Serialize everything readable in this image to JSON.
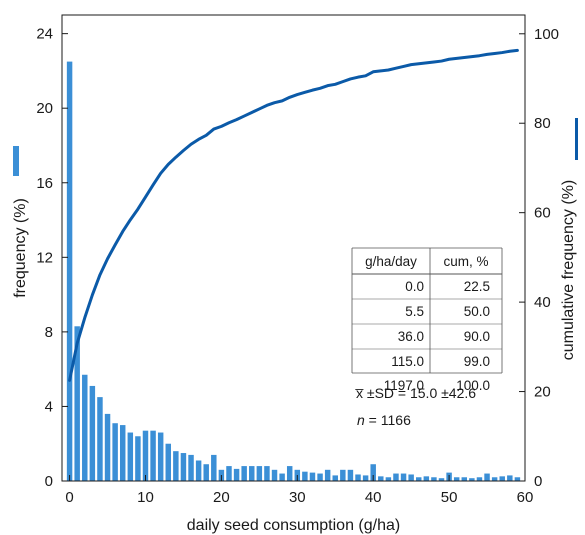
{
  "chart_data": {
    "type": "bar",
    "bar_color": "#3b8fd6",
    "line_color": "#0b5aa8",
    "xlabel": "daily seed consumption (g/ha)",
    "ylabel_left": "frequency (%)",
    "ylabel_right": "cumulative frequency (%)",
    "xlim": [
      -1,
      60
    ],
    "ylim_left": [
      0,
      25
    ],
    "ylim_right": [
      0,
      104.2
    ],
    "x_ticks": [
      0,
      10,
      20,
      30,
      40,
      50,
      60
    ],
    "y_ticks_left": [
      0,
      4,
      8,
      12,
      16,
      20,
      24
    ],
    "y_ticks_right": [
      0,
      20,
      40,
      60,
      80,
      100
    ],
    "histogram": {
      "x": [
        0,
        1,
        2,
        3,
        4,
        5,
        6,
        7,
        8,
        9,
        10,
        11,
        12,
        13,
        14,
        15,
        16,
        17,
        18,
        19,
        20,
        21,
        22,
        23,
        24,
        25,
        26,
        27,
        28,
        29,
        30,
        31,
        32,
        33,
        34,
        35,
        36,
        37,
        38,
        39,
        40,
        41,
        42,
        43,
        44,
        45,
        46,
        47,
        48,
        49,
        50,
        51,
        52,
        53,
        54,
        55,
        56,
        57,
        58,
        59
      ],
      "values": [
        22.5,
        8.3,
        5.7,
        5.1,
        4.5,
        3.6,
        3.1,
        3.0,
        2.6,
        2.4,
        2.7,
        2.7,
        2.6,
        2.0,
        1.6,
        1.5,
        1.4,
        1.1,
        0.9,
        1.4,
        0.6,
        0.8,
        0.65,
        0.8,
        0.8,
        0.8,
        0.8,
        0.6,
        0.4,
        0.8,
        0.6,
        0.5,
        0.45,
        0.4,
        0.6,
        0.3,
        0.6,
        0.6,
        0.35,
        0.3,
        0.9,
        0.25,
        0.2,
        0.4,
        0.4,
        0.35,
        0.2,
        0.25,
        0.2,
        0.15,
        0.45,
        0.2,
        0.2,
        0.15,
        0.2,
        0.4,
        0.2,
        0.25,
        0.3,
        0.2
      ]
    },
    "cumulative": {
      "x": [
        0,
        1,
        2,
        3,
        4,
        5,
        6,
        7,
        8,
        9,
        10,
        11,
        12,
        13,
        14,
        15,
        16,
        17,
        18,
        19,
        20,
        21,
        22,
        23,
        24,
        25,
        26,
        27,
        28,
        29,
        30,
        31,
        32,
        33,
        34,
        35,
        36,
        37,
        38,
        39,
        40,
        41,
        42,
        43,
        44,
        45,
        46,
        47,
        48,
        49,
        50,
        51,
        52,
        53,
        54,
        55,
        56,
        57,
        58,
        59
      ],
      "values": [
        22.5,
        30.8,
        36.5,
        41.6,
        46.1,
        49.7,
        52.8,
        55.8,
        58.4,
        60.8,
        63.5,
        66.2,
        68.8,
        70.8,
        72.4,
        73.9,
        75.3,
        76.4,
        77.3,
        78.7,
        79.3,
        80.1,
        80.8,
        81.6,
        82.4,
        83.2,
        84.0,
        84.6,
        85.0,
        85.8,
        86.4,
        86.9,
        87.4,
        87.8,
        88.4,
        88.7,
        89.3,
        89.9,
        90.3,
        90.6,
        91.5,
        91.7,
        91.9,
        92.3,
        92.7,
        93.1,
        93.3,
        93.5,
        93.7,
        93.9,
        94.3,
        94.5,
        94.7,
        94.9,
        95.1,
        95.4,
        95.6,
        95.8,
        96.1,
        96.3
      ]
    },
    "table": {
      "headers": [
        "g/ha/day",
        "cum, %"
      ],
      "rows": [
        [
          "0.0",
          "22.5"
        ],
        [
          "5.5",
          "50.0"
        ],
        [
          "36.0",
          "90.0"
        ],
        [
          "115.0",
          "99.0"
        ],
        [
          "1197.0",
          "100.0"
        ]
      ]
    },
    "stats": {
      "mean_sd": "x̅ ±SD = 15.0 ±42.6",
      "n_label": "n",
      "n_value": " = 1166"
    }
  }
}
